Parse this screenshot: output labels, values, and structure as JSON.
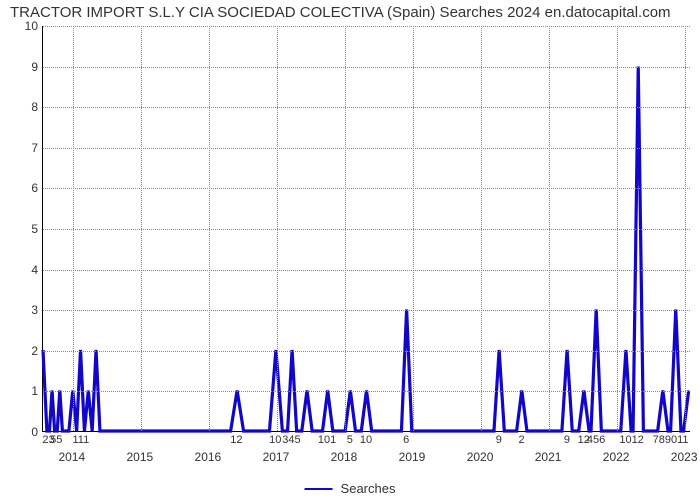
{
  "title": "TRACTOR IMPORT S.L.Y CIA SOCIEDAD COLECTIVA (Spain) Searches 2024 en.datocapital.com",
  "chart": {
    "type": "line",
    "line_color": "#1207c8",
    "line_width": 2,
    "background_color": "#ffffff",
    "grid_color": "#888888",
    "y": {
      "min": 0,
      "max": 10,
      "ticks": [
        0,
        1,
        2,
        3,
        4,
        5,
        6,
        7,
        8,
        9,
        10
      ]
    },
    "x": {
      "major_ticks": [
        {
          "pos": 0.046,
          "label": "2014"
        },
        {
          "pos": 0.151,
          "label": "2015"
        },
        {
          "pos": 0.256,
          "label": "2016"
        },
        {
          "pos": 0.361,
          "label": "2017"
        },
        {
          "pos": 0.466,
          "label": "2018"
        },
        {
          "pos": 0.571,
          "label": "2019"
        },
        {
          "pos": 0.676,
          "label": "2020"
        },
        {
          "pos": 0.781,
          "label": "2021"
        },
        {
          "pos": 0.886,
          "label": "2022"
        },
        {
          "pos": 0.991,
          "label": "2023"
        }
      ],
      "minor_ticks": [
        {
          "pos": 0.01,
          "label": "23"
        },
        {
          "pos": 0.022,
          "label": "55"
        },
        {
          "pos": 0.06,
          "label": "111"
        },
        {
          "pos": 0.3,
          "label": "12"
        },
        {
          "pos": 0.36,
          "label": "10"
        },
        {
          "pos": 0.385,
          "label": "345"
        },
        {
          "pos": 0.44,
          "label": "101"
        },
        {
          "pos": 0.475,
          "label": "5"
        },
        {
          "pos": 0.5,
          "label": "10"
        },
        {
          "pos": 0.562,
          "label": "6"
        },
        {
          "pos": 0.705,
          "label": "9"
        },
        {
          "pos": 0.74,
          "label": "2"
        },
        {
          "pos": 0.81,
          "label": "9"
        },
        {
          "pos": 0.836,
          "label": "12"
        },
        {
          "pos": 0.855,
          "label": "456"
        },
        {
          "pos": 0.91,
          "label": "1012"
        },
        {
          "pos": 0.97,
          "label": "789011"
        }
      ]
    },
    "series": [
      {
        "x": 0.0,
        "y": 2
      },
      {
        "x": 0.006,
        "y": 0
      },
      {
        "x": 0.01,
        "y": 0
      },
      {
        "x": 0.014,
        "y": 1
      },
      {
        "x": 0.018,
        "y": 0
      },
      {
        "x": 0.022,
        "y": 0
      },
      {
        "x": 0.026,
        "y": 1
      },
      {
        "x": 0.03,
        "y": 0
      },
      {
        "x": 0.04,
        "y": 0
      },
      {
        "x": 0.046,
        "y": 1
      },
      {
        "x": 0.052,
        "y": 0
      },
      {
        "x": 0.058,
        "y": 2
      },
      {
        "x": 0.064,
        "y": 0
      },
      {
        "x": 0.07,
        "y": 1
      },
      {
        "x": 0.076,
        "y": 0
      },
      {
        "x": 0.082,
        "y": 2
      },
      {
        "x": 0.088,
        "y": 0
      },
      {
        "x": 0.15,
        "y": 0
      },
      {
        "x": 0.29,
        "y": 0
      },
      {
        "x": 0.3,
        "y": 1
      },
      {
        "x": 0.31,
        "y": 0
      },
      {
        "x": 0.35,
        "y": 0
      },
      {
        "x": 0.36,
        "y": 2
      },
      {
        "x": 0.37,
        "y": 0
      },
      {
        "x": 0.378,
        "y": 0
      },
      {
        "x": 0.385,
        "y": 2
      },
      {
        "x": 0.392,
        "y": 0
      },
      {
        "x": 0.4,
        "y": 0
      },
      {
        "x": 0.408,
        "y": 1
      },
      {
        "x": 0.416,
        "y": 0
      },
      {
        "x": 0.432,
        "y": 0
      },
      {
        "x": 0.44,
        "y": 1
      },
      {
        "x": 0.448,
        "y": 0
      },
      {
        "x": 0.467,
        "y": 0
      },
      {
        "x": 0.475,
        "y": 1
      },
      {
        "x": 0.483,
        "y": 0
      },
      {
        "x": 0.492,
        "y": 0
      },
      {
        "x": 0.5,
        "y": 1
      },
      {
        "x": 0.508,
        "y": 0
      },
      {
        "x": 0.554,
        "y": 0
      },
      {
        "x": 0.562,
        "y": 3
      },
      {
        "x": 0.57,
        "y": 0
      },
      {
        "x": 0.697,
        "y": 0
      },
      {
        "x": 0.705,
        "y": 2
      },
      {
        "x": 0.713,
        "y": 0
      },
      {
        "x": 0.732,
        "y": 0
      },
      {
        "x": 0.74,
        "y": 1
      },
      {
        "x": 0.748,
        "y": 0
      },
      {
        "x": 0.802,
        "y": 0
      },
      {
        "x": 0.81,
        "y": 2
      },
      {
        "x": 0.818,
        "y": 0
      },
      {
        "x": 0.828,
        "y": 0
      },
      {
        "x": 0.836,
        "y": 1
      },
      {
        "x": 0.844,
        "y": 0
      },
      {
        "x": 0.847,
        "y": 0
      },
      {
        "x": 0.855,
        "y": 3
      },
      {
        "x": 0.863,
        "y": 0
      },
      {
        "x": 0.893,
        "y": 0
      },
      {
        "x": 0.901,
        "y": 2
      },
      {
        "x": 0.909,
        "y": 0
      },
      {
        "x": 0.912,
        "y": 0
      },
      {
        "x": 0.92,
        "y": 9
      },
      {
        "x": 0.928,
        "y": 0
      },
      {
        "x": 0.95,
        "y": 0
      },
      {
        "x": 0.958,
        "y": 1
      },
      {
        "x": 0.966,
        "y": 0
      },
      {
        "x": 0.97,
        "y": 0
      },
      {
        "x": 0.978,
        "y": 3
      },
      {
        "x": 0.986,
        "y": 0
      },
      {
        "x": 0.99,
        "y": 0
      },
      {
        "x": 0.998,
        "y": 1
      }
    ]
  },
  "legend": {
    "label": "Searches"
  }
}
